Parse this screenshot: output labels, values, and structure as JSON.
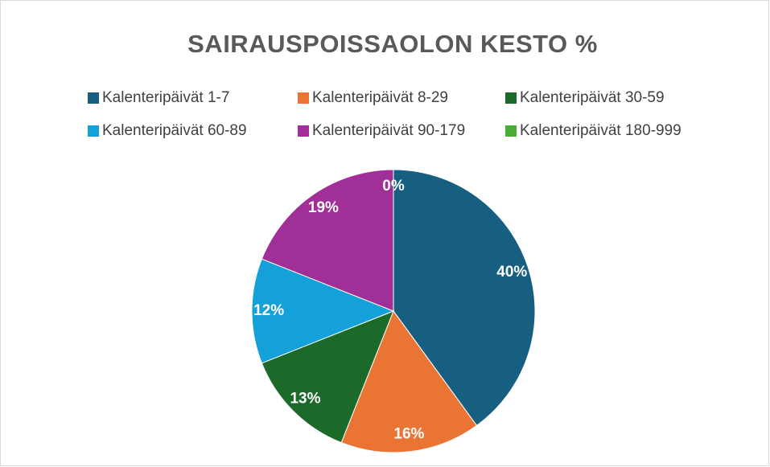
{
  "chart_data": {
    "type": "pie",
    "title": "SAIRAUSPOISSAOLON KESTO %",
    "categories": [
      "Kalenteripäivät 1-7",
      "Kalenteripäivät 8-29",
      "Kalenteripäivät 30-59",
      "Kalenteripäivät 60-89",
      "Kalenteripäivät 90-179",
      "Kalenteripäivät 180-999"
    ],
    "values": [
      40,
      16,
      13,
      12,
      19,
      0
    ],
    "value_labels": [
      "40%",
      "16%",
      "13%",
      "12%",
      "19%",
      "0%"
    ],
    "colors": [
      "#175f80",
      "#e97434",
      "#1b6a2a",
      "#14a0d8",
      "#a02f98",
      "#4aad38"
    ],
    "legend": "top"
  }
}
